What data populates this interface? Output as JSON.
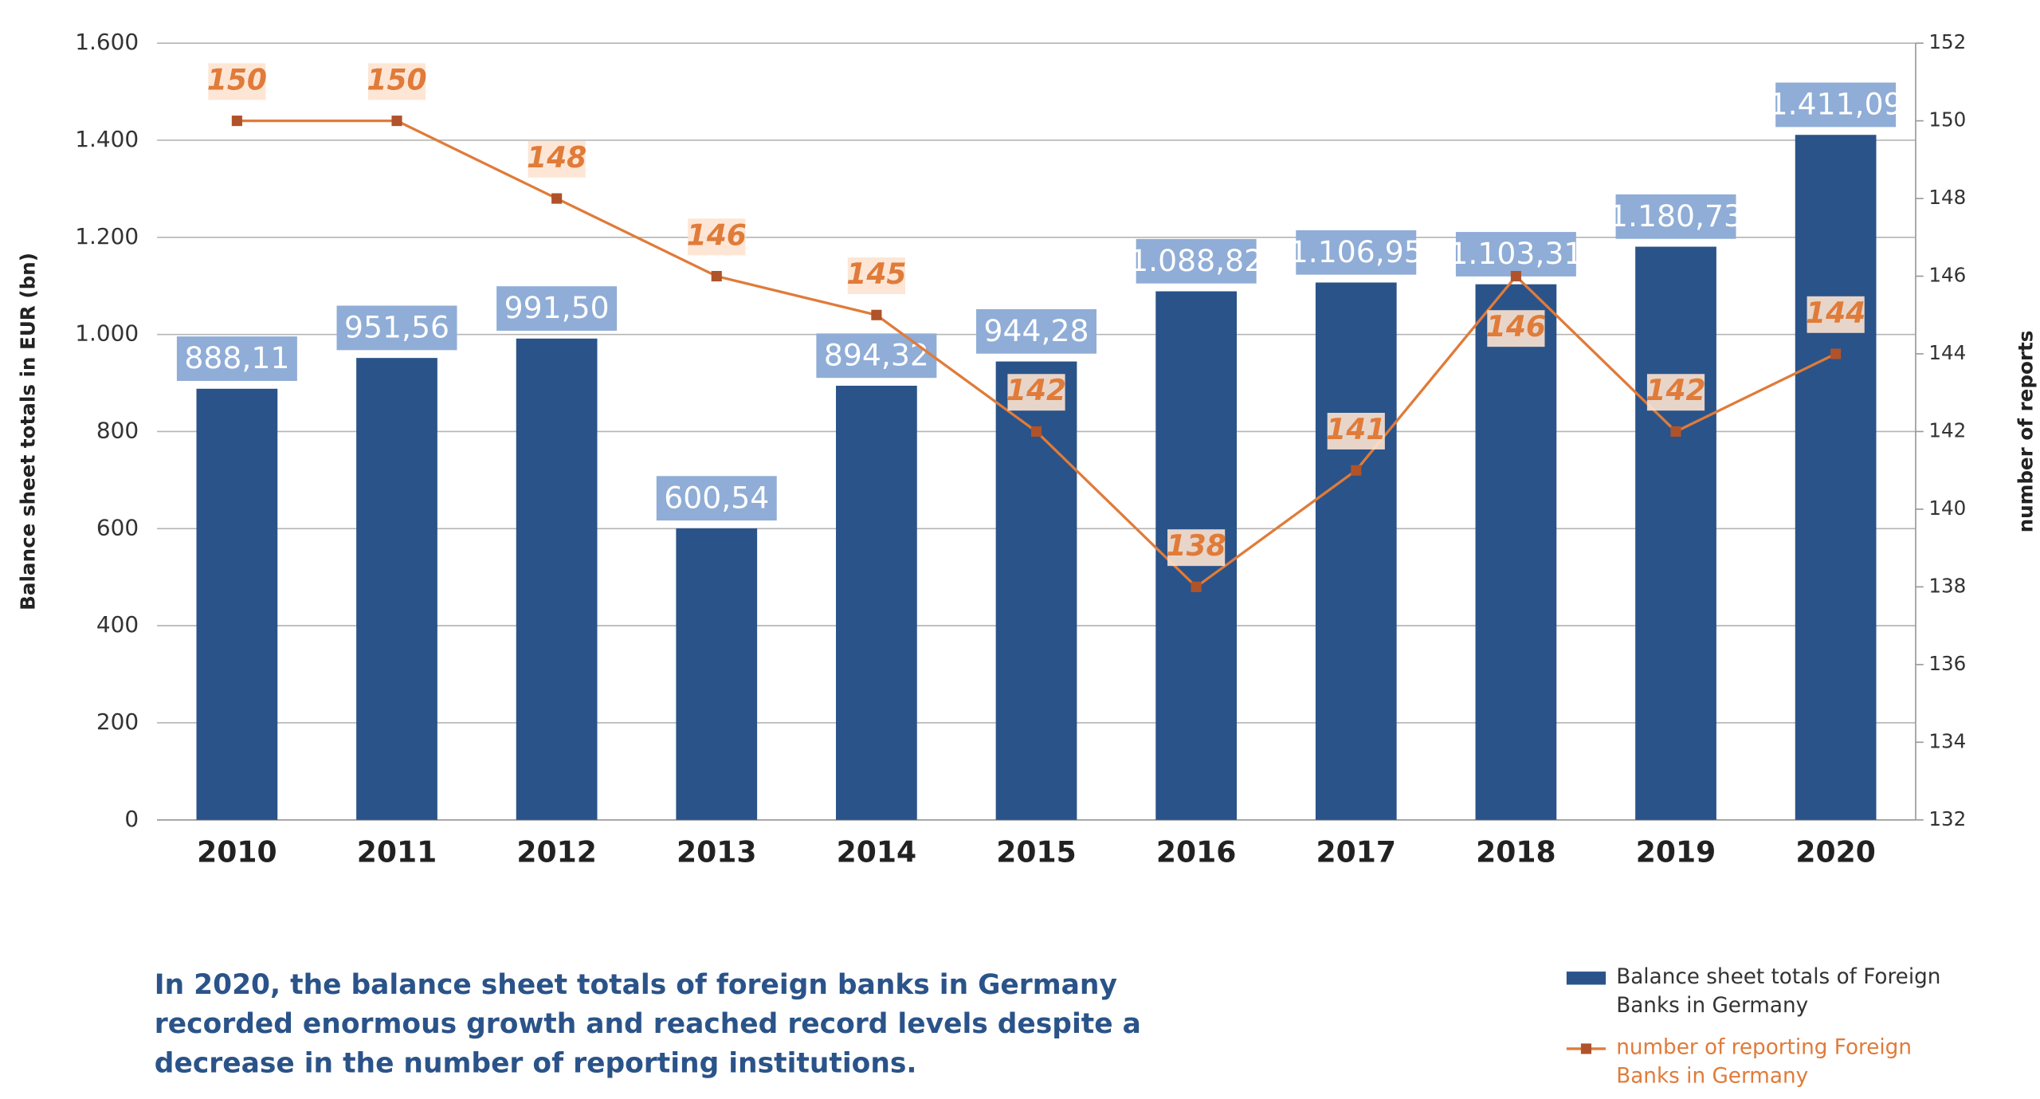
{
  "chart_data": {
    "type": "bar_line",
    "categories": [
      "2010",
      "2011",
      "2012",
      "2013",
      "2014",
      "2015",
      "2016",
      "2017",
      "2018",
      "2019",
      "2020"
    ],
    "series": [
      {
        "name": "Balance sheet totals of Foreign Banks in Germany",
        "color": "#2a5389",
        "type": "bar",
        "values": [
          888.11,
          951.56,
          991.5,
          600.54,
          894.32,
          944.28,
          1088.82,
          1106.95,
          1103.31,
          1180.73,
          1411.09
        ],
        "value_labels": [
          "888,11",
          "951,56",
          "991,50",
          "600,54",
          "894,32",
          "944,28",
          "1.088,82",
          "1.106,95",
          "1.103,31",
          "1.180,73",
          "1.411,09"
        ]
      },
      {
        "name": "number of reporting Foreign Banks in Germany",
        "color": "#e07b39",
        "type": "line",
        "axis": "y2",
        "values": [
          150,
          150,
          148,
          146,
          145,
          142,
          138,
          141,
          146,
          142,
          144
        ]
      }
    ],
    "ylabel": "Balance sheet totals in EUR (bn)",
    "y2label": "number of reports",
    "ylim": [
      0,
      1600
    ],
    "yticks": [
      0,
      200,
      400,
      600,
      800,
      {
        "value": 1000,
        "label": "1.000"
      },
      {
        "value": 1200,
        "label": "1.200"
      },
      {
        "value": 1400,
        "label": "1.400"
      },
      {
        "value": 1600,
        "label": "1.600"
      }
    ],
    "y2lim": [
      132,
      152
    ],
    "y2ticks": [
      132,
      134,
      136,
      138,
      140,
      142,
      144,
      146,
      148,
      150,
      152
    ],
    "grid": true,
    "legend": "bottom-right",
    "caption": "In 2020, the balance sheet totals of foreign banks in Germany recorded enormous growth and reached record levels despite a decrease in the number of reporting institutions."
  }
}
